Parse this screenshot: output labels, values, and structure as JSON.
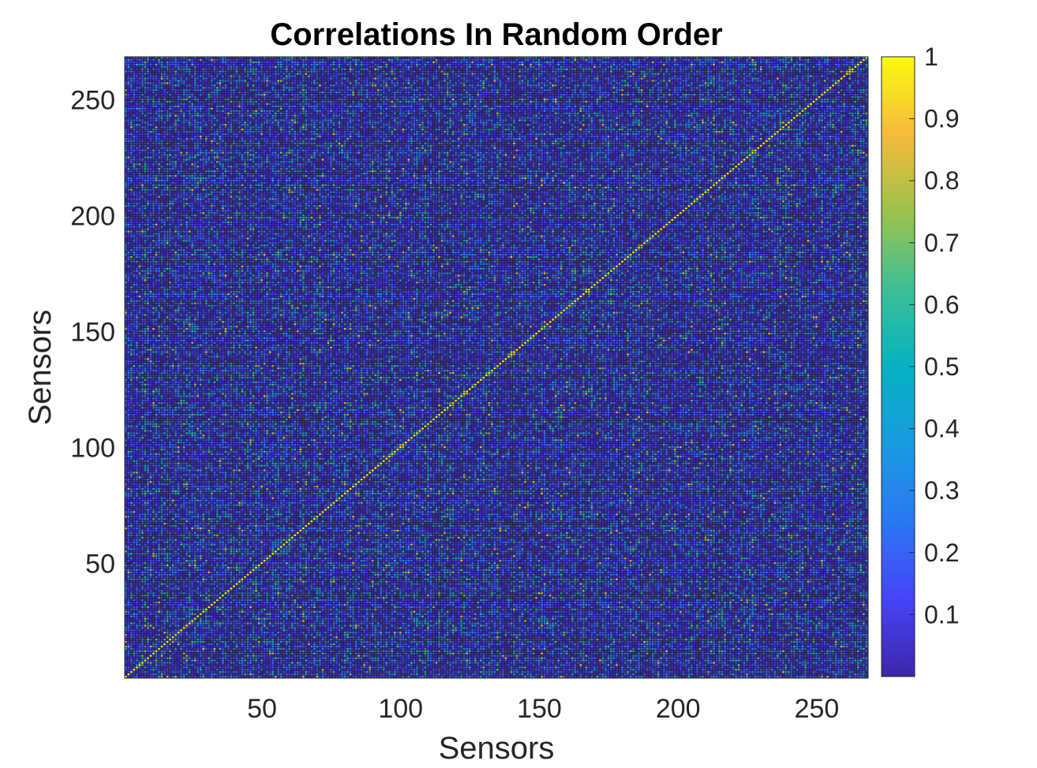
{
  "chart_data": {
    "type": "heatmap",
    "title": "Correlations In Random Order",
    "xlabel": "Sensors",
    "ylabel": "Sensors",
    "n_sensors": 268,
    "xlim": [
      1,
      268
    ],
    "ylim": [
      1,
      268
    ],
    "x_ticks": [
      50,
      100,
      150,
      200,
      250
    ],
    "y_ticks": [
      50,
      100,
      150,
      200,
      250
    ],
    "colorbar": {
      "colormap": "parula",
      "range": [
        0,
        1
      ],
      "ticks": [
        0.1,
        0.2,
        0.3,
        0.4,
        0.5,
        0.6,
        0.7,
        0.8,
        0.9,
        1
      ],
      "tick_labels": [
        "0.1",
        "0.2",
        "0.3",
        "0.4",
        "0.5",
        "0.6",
        "0.7",
        "0.8",
        "0.9",
        "1"
      ]
    },
    "values_description": "268x268 symmetric sensor correlation matrix, sensors in random order; diagonal = 1, off-diagonal values mostly below 0.3 with scattered values up to about 0.9",
    "diagonal_value": 1,
    "typical_off_diagonal_range": [
      0.0,
      0.3
    ],
    "max_off_diagonal_approx": 0.9,
    "grid": false
  }
}
